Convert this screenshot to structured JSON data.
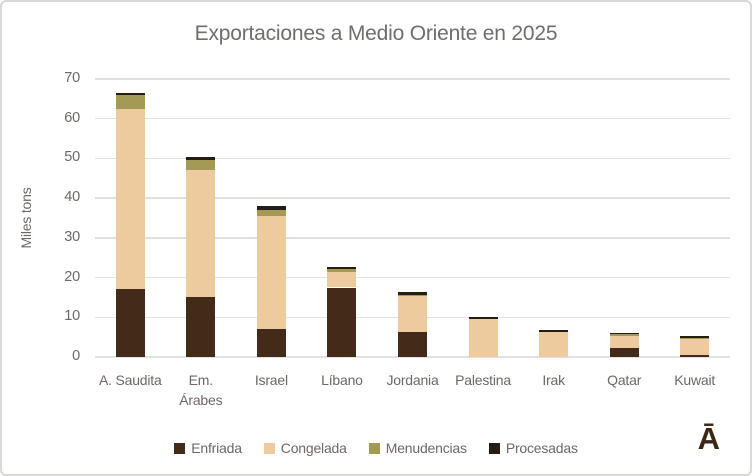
{
  "logo_text": "Ā",
  "chart_data": {
    "type": "bar",
    "stacked": true,
    "title": "Exportaciones a Medio Oriente en 2025",
    "xlabel": "",
    "ylabel": "Miles tons",
    "ylim": [
      0,
      70
    ],
    "ytick_step": 10,
    "ytick_labels": [
      "0",
      "10",
      "20",
      "30",
      "40",
      "50",
      "60",
      "70"
    ],
    "grid": true,
    "legend_position": "bottom",
    "categories": [
      "A. Saudita",
      "Em. Árabes",
      "Israel",
      "Líbano",
      "Jordania",
      "Palestina",
      "Irak",
      "Qatar",
      "Kuwait"
    ],
    "series": [
      {
        "name": "Enfriada",
        "color": "#432a19",
        "values": [
          17,
          15,
          7,
          17.5,
          6.3,
          0,
          0,
          2.2,
          0.5
        ]
      },
      {
        "name": "Congelada",
        "color": "#eeca9f",
        "values": [
          45.5,
          32,
          28.5,
          3.8,
          9.0,
          9.5,
          6.2,
          3.2,
          4.0
        ]
      },
      {
        "name": "Menudencias",
        "color": "#a39a56",
        "values": [
          3.5,
          2.5,
          1.6,
          0.8,
          0.3,
          0,
          0,
          0.3,
          0.3
        ]
      },
      {
        "name": "Procesadas",
        "color": "#241c15",
        "values": [
          0.5,
          0.8,
          0.9,
          0.5,
          0.8,
          0.5,
          0.5,
          0.4,
          0.4
        ]
      }
    ],
    "totals": [
      66.5,
      50.3,
      38.0,
      22.6,
      16.4,
      10.0,
      6.7,
      6.1,
      5.2
    ]
  },
  "style": {
    "title_color": "#746b6b",
    "axis_text_color": "#6f6666",
    "gridline_color": "#e4e0e0",
    "frame_border_color": "#dcd8d8",
    "logo_color": "#3b2817",
    "background": "#ffffff"
  }
}
